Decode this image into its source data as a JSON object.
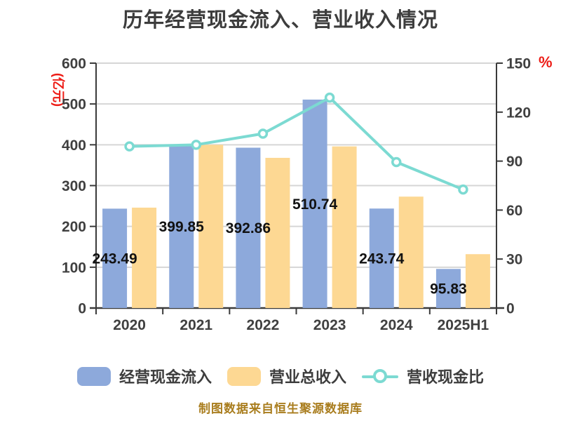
{
  "title": "历年经营现金流入、营业收入情况",
  "footer": "制图数据来自恒生聚源数据库",
  "left_axis_name": "(亿元)",
  "right_axis_name": "%",
  "legend": [
    {
      "label": "经营现金流入",
      "type": "bar"
    },
    {
      "label": "营业总收入",
      "type": "bar"
    },
    {
      "label": "营收现金比",
      "type": "line"
    }
  ],
  "colors": {
    "cash_bar": "#8DA9DB",
    "revenue_bar": "#FDD893",
    "ratio_line": "#7CDAD2",
    "marker_fill": "#FFFFFF",
    "grid_line": "#D6D6D6",
    "axis_line": "#3A3A3A",
    "axis_text": "#404040",
    "title_text": "#3D3D3D",
    "data_label": "#121212",
    "axis_name_red": "#ED1C16",
    "footer_text": "#A97D1E"
  },
  "chart_data": {
    "type": "bar+line",
    "title": "历年经营现金流入、营业收入情况",
    "categories": [
      "2020",
      "2021",
      "2022",
      "2023",
      "2024",
      "2025H1"
    ],
    "series": [
      {
        "name": "经营现金流入",
        "type": "bar",
        "axis": "left",
        "values": [
          243.49,
          399.85,
          392.86,
          510.74,
          243.74,
          95.83
        ],
        "labels": [
          "243.49",
          "399.85",
          "392.86",
          "510.74",
          "243.74",
          "95.83"
        ]
      },
      {
        "name": "营业总收入",
        "type": "bar",
        "axis": "left",
        "values": [
          246,
          400,
          368,
          396,
          273,
          132
        ]
      },
      {
        "name": "营收现金比",
        "type": "line",
        "axis": "right",
        "values": [
          99.0,
          100.0,
          106.8,
          128.9,
          89.4,
          72.6
        ]
      }
    ],
    "left_axis": {
      "label": "(亿元)",
      "min": 0,
      "max": 600,
      "ticks": [
        0,
        100,
        200,
        300,
        400,
        500,
        600
      ]
    },
    "right_axis": {
      "label": "%",
      "min": 0,
      "max": 150,
      "ticks": [
        0,
        30,
        60,
        90,
        120,
        150
      ]
    },
    "grid": true,
    "legend_position": "bottom"
  }
}
